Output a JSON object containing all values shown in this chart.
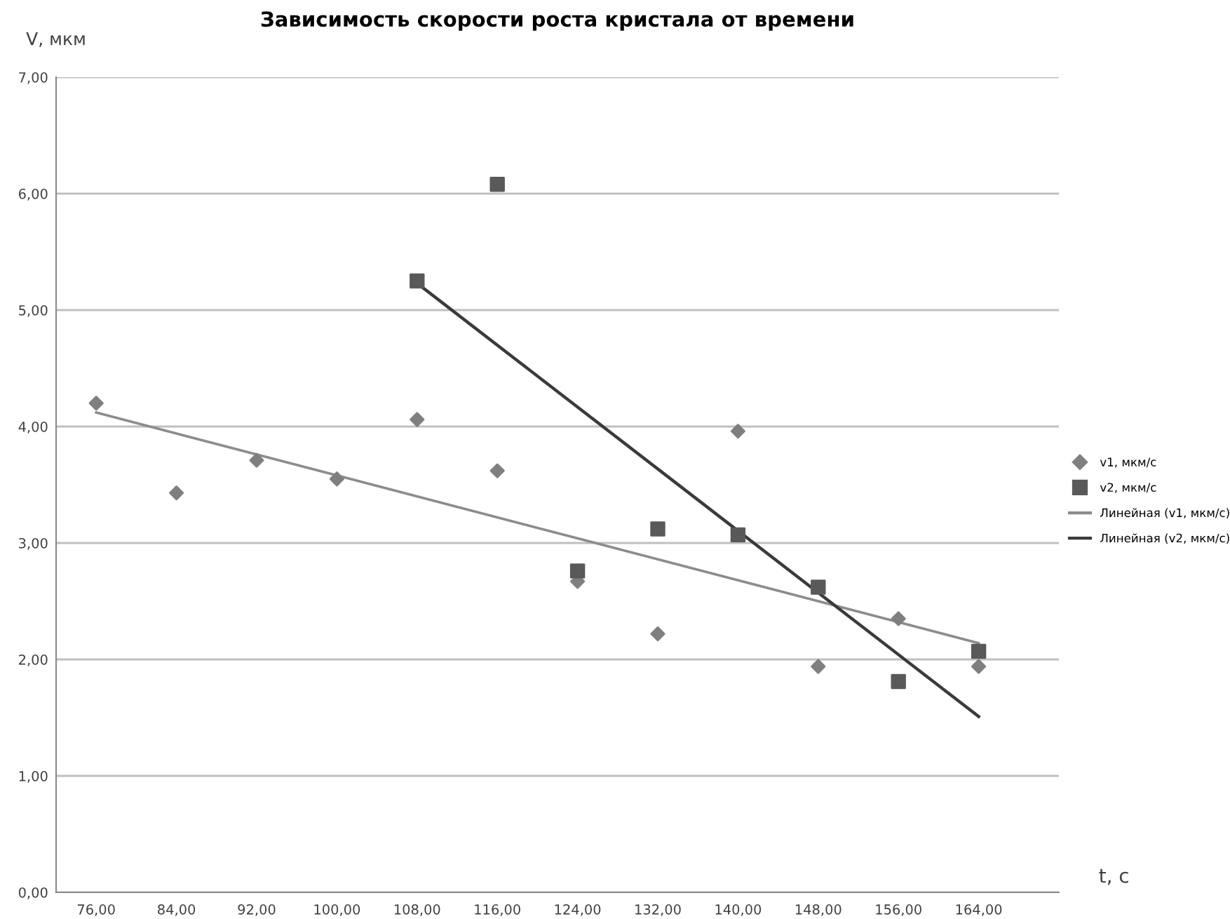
{
  "chart_data": {
    "type": "scatter",
    "title": "Зависимость скорости роста кристала от времени",
    "xlabel": "t, с",
    "ylabel": "V, мкм",
    "x": [
      76,
      84,
      92,
      100,
      108,
      116,
      124,
      132,
      140,
      148,
      156,
      164
    ],
    "series": [
      {
        "name": "v1, мкм/с",
        "color": "#7f7f7f",
        "marker": "diamond",
        "values": [
          4.2,
          3.43,
          3.71,
          3.55,
          4.06,
          3.62,
          2.67,
          2.22,
          3.96,
          1.94,
          2.35,
          1.94
        ]
      },
      {
        "name": "v2, мкм/с",
        "color": "#595959",
        "marker": "square",
        "values": [
          null,
          null,
          null,
          null,
          5.25,
          6.08,
          2.76,
          3.12,
          3.07,
          2.62,
          1.81,
          2.07
        ]
      },
      {
        "name": "Линейная (v1, мкм/с)",
        "type": "line",
        "color": "#8c8c8c",
        "x": [
          76,
          164
        ],
        "values": [
          4.12,
          2.14
        ]
      },
      {
        "name": "Линейная (v2, мкм/с)",
        "type": "line",
        "color": "#3a3a3a",
        "x": [
          108,
          164
        ],
        "values": [
          5.23,
          1.51
        ]
      }
    ],
    "xlim": [
      72,
      172
    ],
    "ylim": [
      0,
      7
    ],
    "xticks": [
      {
        "value": 76,
        "label": "76,00"
      },
      {
        "value": 84,
        "label": "84,00"
      },
      {
        "value": 92,
        "label": "92,00"
      },
      {
        "value": 100,
        "label": "100,00"
      },
      {
        "value": 108,
        "label": "108,00"
      },
      {
        "value": 116,
        "label": "116,00"
      },
      {
        "value": 124,
        "label": "124,00"
      },
      {
        "value": 132,
        "label": "132,00"
      },
      {
        "value": 140,
        "label": "140,00"
      },
      {
        "value": 148,
        "label": "148,00"
      },
      {
        "value": 156,
        "label": "156,00"
      },
      {
        "value": 164,
        "label": "164,00"
      }
    ],
    "yticks": [
      {
        "value": 0,
        "label": "0,00"
      },
      {
        "value": 1,
        "label": "1,00"
      },
      {
        "value": 2,
        "label": "2,00"
      },
      {
        "value": 3,
        "label": "3,00"
      },
      {
        "value": 4,
        "label": "4,00"
      },
      {
        "value": 5,
        "label": "5,00"
      },
      {
        "value": 6,
        "label": "6,00"
      },
      {
        "value": 7,
        "label": "7,00"
      }
    ],
    "grid": "y",
    "legend": "right"
  }
}
